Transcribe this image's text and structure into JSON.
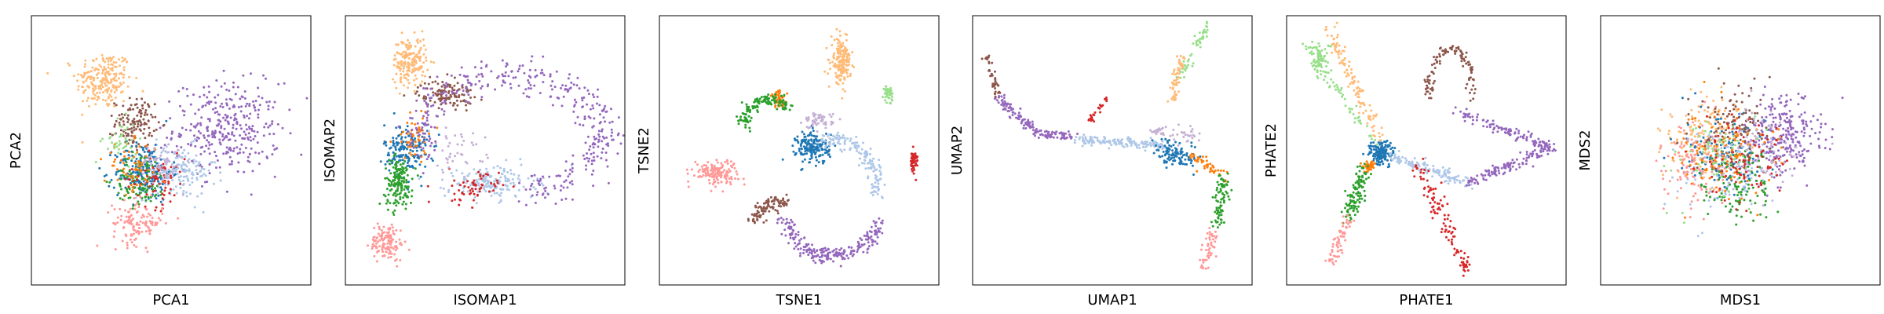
{
  "figure": {
    "title": ""
  },
  "palette": {
    "blue": "#1f77b4",
    "lightblue": "#aec7e8",
    "orange": "#ff7f0e",
    "peach": "#ffbb78",
    "green": "#2ca02c",
    "lightgreen": "#98df8a",
    "red": "#d62728",
    "pink": "#ff9896",
    "purple": "#9467bd",
    "lavender": "#c5b0d5",
    "brown": "#8c564b"
  },
  "chart_data": [
    {
      "type": "scatter",
      "title": "",
      "xlabel": "PCA1",
      "ylabel": "PCA2",
      "xlim": [
        0,
        10
      ],
      "ylim": [
        0,
        10
      ],
      "ticks": "hidden",
      "grid": false,
      "legend": "none",
      "clusters": [
        {
          "color": "peach",
          "x": 2.6,
          "y": 7.6,
          "sx": 1.0,
          "sy": 1.1,
          "n": 220
        },
        {
          "color": "purple",
          "x": 7.0,
          "y": 5.8,
          "sx": 1.9,
          "sy": 1.7,
          "n": 330
        },
        {
          "color": "brown",
          "x": 3.7,
          "y": 6.0,
          "sx": 0.7,
          "sy": 0.9,
          "n": 130
        },
        {
          "color": "lightblue",
          "x": 5.2,
          "y": 4.2,
          "sx": 1.4,
          "sy": 1.0,
          "n": 170
        },
        {
          "color": "blue",
          "x": 4.0,
          "y": 4.2,
          "sx": 1.0,
          "sy": 1.1,
          "n": 200
        },
        {
          "color": "green",
          "x": 3.9,
          "y": 3.9,
          "sx": 0.9,
          "sy": 1.0,
          "n": 110
        },
        {
          "color": "red",
          "x": 4.5,
          "y": 3.9,
          "sx": 1.0,
          "sy": 1.0,
          "n": 70
        },
        {
          "color": "pink",
          "x": 3.8,
          "y": 2.3,
          "sx": 0.9,
          "sy": 0.8,
          "n": 120
        },
        {
          "color": "orange",
          "x": 3.6,
          "y": 4.4,
          "sx": 1.0,
          "sy": 0.9,
          "n": 60
        },
        {
          "color": "lavender",
          "x": 4.6,
          "y": 4.5,
          "sx": 0.8,
          "sy": 0.8,
          "n": 60
        },
        {
          "color": "lightgreen",
          "x": 3.2,
          "y": 5.3,
          "sx": 0.6,
          "sy": 0.8,
          "n": 40
        }
      ]
    },
    {
      "type": "scatter",
      "title": "",
      "xlabel": "ISOMAP1",
      "ylabel": "ISOMAP2",
      "xlim": [
        0,
        10
      ],
      "ylim": [
        0,
        10
      ],
      "ticks": "hidden",
      "grid": false,
      "legend": "none",
      "clusters": [
        {
          "color": "peach",
          "x": 2.3,
          "y": 8.3,
          "sx": 0.6,
          "sy": 0.9,
          "n": 180
        },
        {
          "color": "brown",
          "x": 3.6,
          "y": 7.1,
          "sx": 1.0,
          "sy": 0.5,
          "n": 120
        },
        {
          "color": "blue",
          "x": 2.2,
          "y": 5.0,
          "sx": 0.8,
          "sy": 1.0,
          "n": 180
        },
        {
          "color": "green",
          "x": 1.9,
          "y": 3.8,
          "sx": 0.5,
          "sy": 0.9,
          "n": 170
        },
        {
          "color": "pink",
          "x": 1.5,
          "y": 1.6,
          "sx": 0.6,
          "sy": 0.7,
          "n": 130
        },
        {
          "color": "lightblue",
          "x": 5.2,
          "y": 3.8,
          "sx": 1.6,
          "sy": 0.6,
          "n": 170
        },
        {
          "color": "red",
          "x": 4.5,
          "y": 3.6,
          "sx": 1.0,
          "sy": 0.6,
          "n": 60
        },
        {
          "color": "orange",
          "x": 2.5,
          "y": 5.5,
          "sx": 0.7,
          "sy": 0.9,
          "n": 50
        },
        {
          "color": "lavender",
          "x": 4.0,
          "y": 5.0,
          "sx": 1.0,
          "sy": 0.8,
          "n": 40
        }
      ],
      "arcs": [
        {
          "color": "purple",
          "x": 5.9,
          "y": 5.6,
          "rx": 3.3,
          "ry": 2.1,
          "t0": -80,
          "t1": 200,
          "w": 0.35,
          "n": 380
        }
      ]
    },
    {
      "type": "scatter",
      "title": "",
      "xlabel": "TSNE1",
      "ylabel": "TSNE2",
      "xlim": [
        0,
        10
      ],
      "ylim": [
        0,
        10
      ],
      "ticks": "hidden",
      "grid": false,
      "legend": "none",
      "clusters": [
        {
          "color": "peach",
          "x": 6.5,
          "y": 8.3,
          "sx": 0.35,
          "sy": 0.8,
          "n": 180
        },
        {
          "color": "lightgreen",
          "x": 8.2,
          "y": 7.1,
          "sx": 0.15,
          "sy": 0.3,
          "n": 40
        },
        {
          "color": "red",
          "x": 9.1,
          "y": 4.6,
          "sx": 0.15,
          "sy": 0.4,
          "n": 50
        },
        {
          "color": "pink",
          "x": 2.0,
          "y": 4.2,
          "sx": 0.8,
          "sy": 0.45,
          "n": 140
        },
        {
          "color": "blue",
          "x": 5.5,
          "y": 5.1,
          "sx": 0.6,
          "sy": 0.6,
          "n": 180
        },
        {
          "color": "lavender",
          "x": 5.7,
          "y": 6.1,
          "sx": 0.5,
          "sy": 0.3,
          "n": 60
        },
        {
          "color": "orange",
          "x": 4.3,
          "y": 6.9,
          "sx": 0.3,
          "sy": 0.3,
          "n": 50
        }
      ],
      "arcs": [
        {
          "color": "green",
          "x": 3.9,
          "y": 6.1,
          "rx": 0.9,
          "ry": 0.8,
          "t0": 40,
          "t1": 200,
          "w": 0.12,
          "n": 130
        },
        {
          "color": "lightblue",
          "x": 6.2,
          "y": 3.6,
          "rx": 1.6,
          "ry": 1.8,
          "t0": -10,
          "t1": 110,
          "w": 0.15,
          "n": 150
        },
        {
          "color": "purple",
          "x": 6.2,
          "y": 3.0,
          "rx": 1.8,
          "ry": 1.9,
          "t0": 200,
          "t1": 340,
          "w": 0.15,
          "n": 230
        },
        {
          "color": "brown",
          "x": 4.8,
          "y": 2.5,
          "rx": 1.3,
          "ry": 0.6,
          "t0": 100,
          "t1": 190,
          "w": 0.12,
          "n": 100
        }
      ]
    },
    {
      "type": "scatter",
      "title": "",
      "xlabel": "UMAP1",
      "ylabel": "UMAP2",
      "xlim": [
        0,
        10
      ],
      "ylim": [
        0,
        10
      ],
      "ticks": "hidden",
      "grid": false,
      "legend": "none",
      "segments": [
        {
          "color": "lightgreen",
          "x0": 7.4,
          "y0": 7.5,
          "x1": 8.4,
          "y1": 9.7,
          "w": 0.08,
          "n": 50
        },
        {
          "color": "peach",
          "x0": 7.1,
          "y0": 6.8,
          "x1": 7.5,
          "y1": 8.5,
          "w": 0.08,
          "n": 60
        },
        {
          "color": "brown",
          "x0": 0.5,
          "y0": 8.5,
          "x1": 0.9,
          "y1": 7.0,
          "w": 0.06,
          "n": 40
        },
        {
          "color": "purple",
          "x0": 0.9,
          "y0": 7.0,
          "x1": 2.3,
          "y1": 5.6,
          "w": 0.1,
          "n": 90
        },
        {
          "color": "purple",
          "x0": 2.3,
          "y0": 5.6,
          "x1": 3.6,
          "y1": 5.5,
          "w": 0.08,
          "n": 50
        },
        {
          "color": "lightblue",
          "x0": 3.6,
          "y0": 5.4,
          "x1": 6.9,
          "y1": 5.2,
          "w": 0.09,
          "n": 160
        },
        {
          "color": "red",
          "x0": 4.2,
          "y0": 6.1,
          "x1": 4.8,
          "y1": 6.9,
          "w": 0.07,
          "n": 25
        },
        {
          "color": "lavender",
          "x0": 6.4,
          "y0": 5.8,
          "x1": 8.0,
          "y1": 5.5,
          "w": 0.12,
          "n": 50
        },
        {
          "color": "blue",
          "x0": 6.8,
          "y0": 5.0,
          "x1": 7.8,
          "y1": 4.7,
          "w": 0.22,
          "n": 110
        },
        {
          "color": "orange",
          "x0": 7.9,
          "y0": 4.8,
          "x1": 9.0,
          "y1": 4.0,
          "w": 0.1,
          "n": 45
        },
        {
          "color": "green",
          "x0": 9.0,
          "y0": 4.0,
          "x1": 8.8,
          "y1": 2.2,
          "w": 0.13,
          "n": 80
        },
        {
          "color": "pink",
          "x0": 8.6,
          "y0": 2.0,
          "x1": 8.3,
          "y1": 0.6,
          "w": 0.1,
          "n": 50
        }
      ]
    },
    {
      "type": "scatter",
      "title": "",
      "xlabel": "PHATE1",
      "ylabel": "PHATE2",
      "xlim": [
        0,
        10
      ],
      "ylim": [
        0,
        10
      ],
      "ticks": "hidden",
      "grid": false,
      "legend": "none",
      "clusters": [
        {
          "color": "lightgreen",
          "x": 1.2,
          "y": 8.4,
          "sx": 0.4,
          "sy": 0.6,
          "n": 70
        },
        {
          "color": "blue",
          "x": 3.4,
          "y": 4.9,
          "sx": 0.45,
          "sy": 0.45,
          "n": 150
        },
        {
          "color": "orange",
          "x": 2.9,
          "y": 4.4,
          "sx": 0.25,
          "sy": 0.2,
          "n": 45
        }
      ],
      "segments": [
        {
          "color": "peach",
          "x0": 1.5,
          "y0": 9.6,
          "x1": 3.4,
          "y1": 5.3,
          "w": 0.12,
          "n": 110
        },
        {
          "color": "lightgreen",
          "x0": 0.7,
          "y0": 8.9,
          "x1": 3.1,
          "y1": 5.4,
          "w": 0.12,
          "n": 60
        },
        {
          "color": "green",
          "x0": 2.8,
          "y0": 4.3,
          "x1": 2.2,
          "y1": 2.5,
          "w": 0.16,
          "n": 110
        },
        {
          "color": "pink",
          "x0": 2.2,
          "y0": 2.5,
          "x1": 1.6,
          "y1": 0.8,
          "w": 0.1,
          "n": 60
        },
        {
          "color": "lightblue",
          "x0": 3.8,
          "y0": 4.8,
          "x1": 6.5,
          "y1": 3.8,
          "w": 0.12,
          "n": 120
        },
        {
          "color": "purple",
          "x0": 6.5,
          "y0": 3.8,
          "x1": 9.5,
          "y1": 5.1,
          "w": 0.1,
          "n": 120
        },
        {
          "color": "purple",
          "x0": 9.5,
          "y0": 5.1,
          "x1": 6.1,
          "y1": 6.4,
          "w": 0.1,
          "n": 110
        },
        {
          "color": "red",
          "x0": 4.6,
          "y0": 4.6,
          "x1": 6.1,
          "y1": 1.4,
          "w": 0.15,
          "n": 80
        },
        {
          "color": "red",
          "x0": 6.1,
          "y0": 1.4,
          "x1": 6.5,
          "y1": 0.5,
          "w": 0.08,
          "n": 30
        }
      ],
      "arcs": [
        {
          "color": "brown",
          "x": 5.9,
          "y": 6.9,
          "rx": 0.8,
          "ry": 1.9,
          "t0": 0,
          "t1": 180,
          "w": 0.1,
          "n": 110
        }
      ]
    },
    {
      "type": "scatter",
      "title": "",
      "xlabel": "MDS1",
      "ylabel": "MDS2",
      "xlim": [
        0,
        10
      ],
      "ylim": [
        0,
        10
      ],
      "ticks": "hidden",
      "grid": false,
      "legend": "none",
      "clusters": [
        {
          "color": "purple",
          "x": 6.6,
          "y": 5.6,
          "sx": 1.3,
          "sy": 1.4,
          "n": 260
        },
        {
          "color": "peach",
          "x": 3.8,
          "y": 5.5,
          "sx": 1.5,
          "sy": 1.7,
          "n": 160
        },
        {
          "color": "blue",
          "x": 4.4,
          "y": 5.0,
          "sx": 1.5,
          "sy": 1.6,
          "n": 140
        },
        {
          "color": "lightblue",
          "x": 4.6,
          "y": 4.4,
          "sx": 1.6,
          "sy": 1.6,
          "n": 130
        },
        {
          "color": "pink",
          "x": 3.3,
          "y": 4.5,
          "sx": 1.2,
          "sy": 1.5,
          "n": 120
        },
        {
          "color": "brown",
          "x": 4.8,
          "y": 5.9,
          "sx": 1.4,
          "sy": 1.6,
          "n": 120
        },
        {
          "color": "green",
          "x": 4.9,
          "y": 3.6,
          "sx": 1.4,
          "sy": 1.4,
          "n": 110
        },
        {
          "color": "orange",
          "x": 4.5,
          "y": 4.8,
          "sx": 1.6,
          "sy": 1.7,
          "n": 110
        },
        {
          "color": "red",
          "x": 5.0,
          "y": 4.6,
          "sx": 1.6,
          "sy": 1.7,
          "n": 90
        },
        {
          "color": "lavender",
          "x": 5.6,
          "y": 4.9,
          "sx": 1.4,
          "sy": 1.5,
          "n": 70
        },
        {
          "color": "lightgreen",
          "x": 4.0,
          "y": 5.0,
          "sx": 1.6,
          "sy": 1.7,
          "n": 60
        }
      ]
    }
  ]
}
